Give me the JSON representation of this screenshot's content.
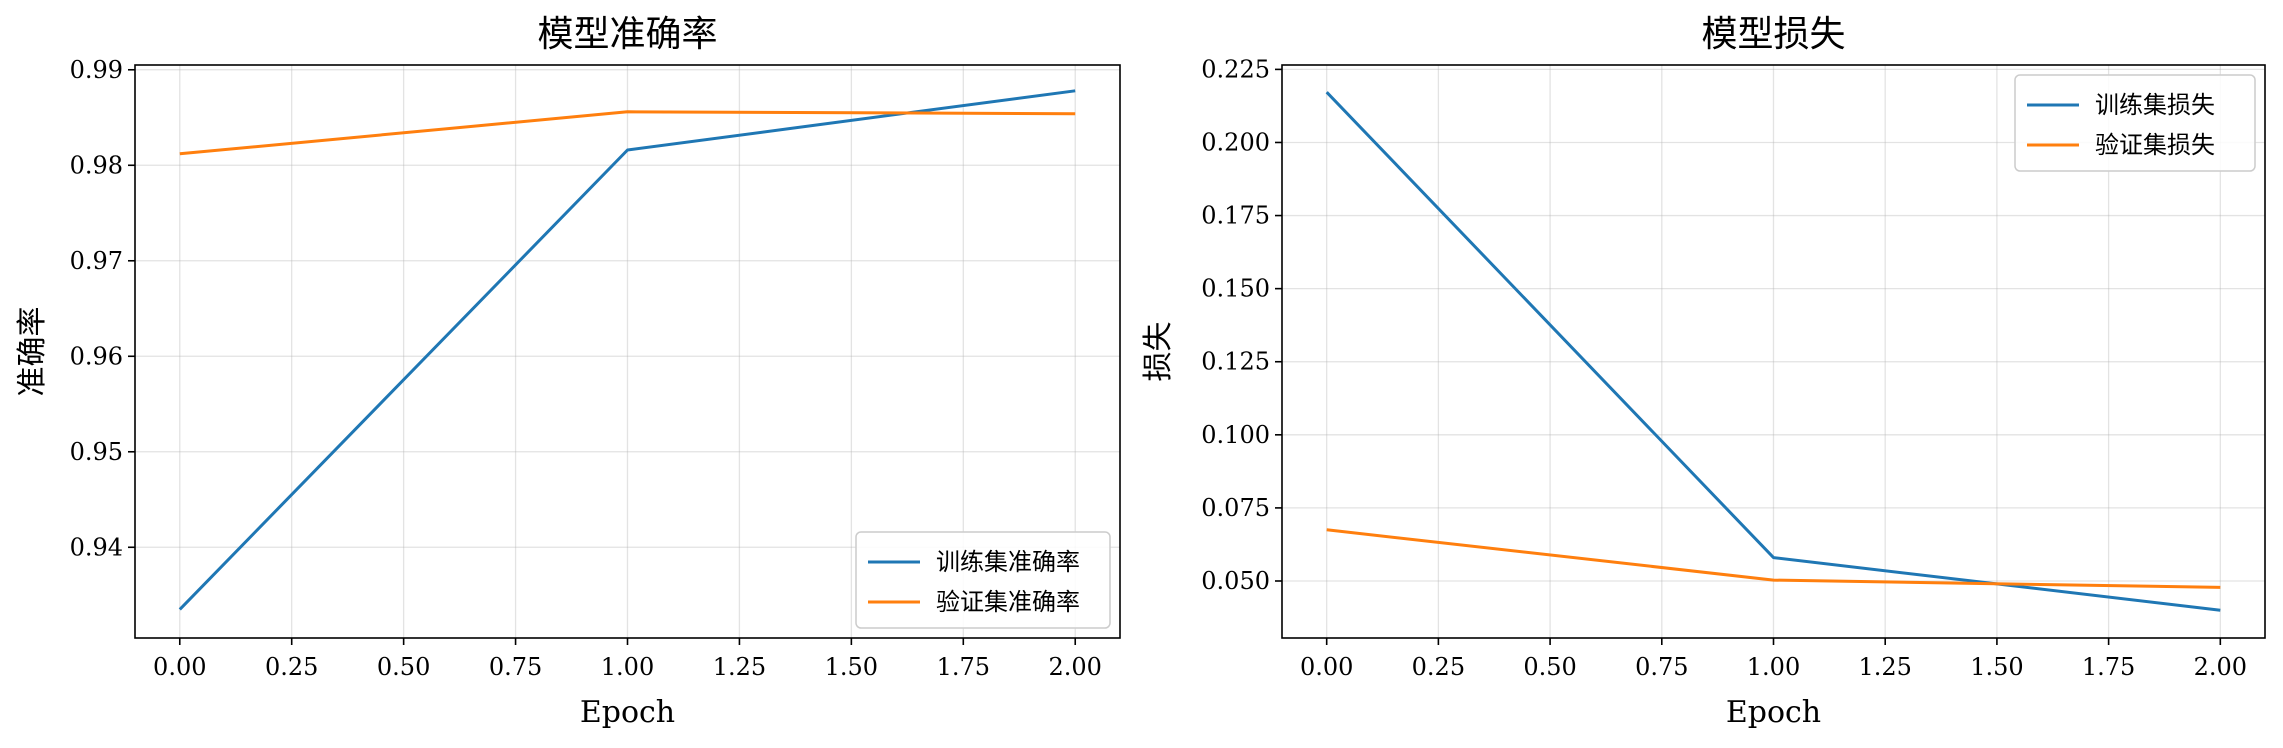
{
  "chart_data": [
    {
      "type": "line",
      "title": "模型准确率",
      "xlabel": "Epoch",
      "ylabel": "准确率",
      "x": [
        0,
        1,
        2
      ],
      "xlim": [
        -0.1,
        2.1
      ],
      "ylim": [
        0.9305,
        0.9905
      ],
      "xticks": [
        "0.00",
        "0.25",
        "0.50",
        "0.75",
        "1.00",
        "1.25",
        "1.50",
        "1.75",
        "2.00"
      ],
      "yticks": [
        "0.94",
        "0.95",
        "0.96",
        "0.97",
        "0.98",
        "0.99"
      ],
      "grid": true,
      "legend": "lower right",
      "series": [
        {
          "name": "训练集准确率",
          "values": [
            0.9335,
            0.9816,
            0.9878
          ],
          "color": "#1f77b4"
        },
        {
          "name": "验证集准确率",
          "values": [
            0.9812,
            0.9856,
            0.9854
          ],
          "color": "#ff7f0e"
        }
      ]
    },
    {
      "type": "line",
      "title": "模型损失",
      "xlabel": "Epoch",
      "ylabel": "损失",
      "x": [
        0,
        1,
        2
      ],
      "xlim": [
        -0.1,
        2.1
      ],
      "ylim": [
        0.0305,
        0.2265
      ],
      "xticks": [
        "0.00",
        "0.25",
        "0.50",
        "0.75",
        "1.00",
        "1.25",
        "1.50",
        "1.75",
        "2.00"
      ],
      "yticks": [
        "0.050",
        "0.075",
        "0.100",
        "0.125",
        "0.150",
        "0.175",
        "0.200",
        "0.225"
      ],
      "grid": true,
      "legend": "upper right",
      "series": [
        {
          "name": "训练集损失",
          "values": [
            0.2172,
            0.058,
            0.04
          ],
          "color": "#1f77b4"
        },
        {
          "name": "验证集损失",
          "values": [
            0.0675,
            0.0503,
            0.0478
          ],
          "color": "#ff7f0e"
        }
      ]
    }
  ]
}
